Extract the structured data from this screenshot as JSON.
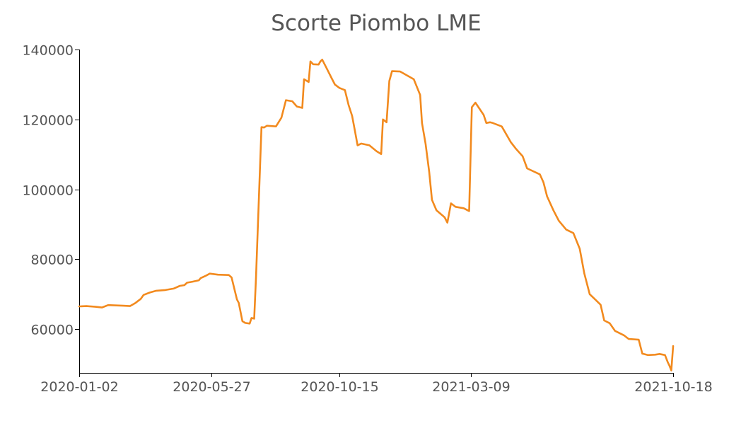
{
  "chart_data": {
    "type": "line",
    "title": "Scorte Piombo LME",
    "xlabel": "",
    "ylabel": "",
    "x_ticks": [
      "2020-01-02",
      "2020-05-27",
      "2020-10-15",
      "2021-03-09",
      "2021-10-18"
    ],
    "y_ticks": [
      "60000",
      "80000",
      "100000",
      "120000",
      "140000"
    ],
    "xlim": [
      "2020-01-02",
      "2021-10-18"
    ],
    "ylim": [
      47500,
      140000
    ],
    "grid": false,
    "legend": "none",
    "line_color": "#f28a1e",
    "series": [
      {
        "points": [
          [
            "2020-01-02",
            66500
          ],
          [
            "2020-01-10",
            66600
          ],
          [
            "2020-01-20",
            66400
          ],
          [
            "2020-01-27",
            66200
          ],
          [
            "2020-02-03",
            66900
          ],
          [
            "2020-02-10",
            66800
          ],
          [
            "2020-02-20",
            66700
          ],
          [
            "2020-02-27",
            66600
          ],
          [
            "2020-03-04",
            67500
          ],
          [
            "2020-03-10",
            68700
          ],
          [
            "2020-03-13",
            69800
          ],
          [
            "2020-03-20",
            70500
          ],
          [
            "2020-03-27",
            71000
          ],
          [
            "2020-04-06",
            71200
          ],
          [
            "2020-04-15",
            71600
          ],
          [
            "2020-04-22",
            72400
          ],
          [
            "2020-04-27",
            72600
          ],
          [
            "2020-04-30",
            73300
          ],
          [
            "2020-05-06",
            73600
          ],
          [
            "2020-05-13",
            74000
          ],
          [
            "2020-05-15",
            74600
          ],
          [
            "2020-05-20",
            75200
          ],
          [
            "2020-05-25",
            75900
          ],
          [
            "2020-05-28",
            75800
          ],
          [
            "2020-06-03",
            75600
          ],
          [
            "2020-06-15",
            75500
          ],
          [
            "2020-06-18",
            74800
          ],
          [
            "2020-06-24",
            68500
          ],
          [
            "2020-06-26",
            67500
          ],
          [
            "2020-06-30",
            62300
          ],
          [
            "2020-07-03",
            61800
          ],
          [
            "2020-07-08",
            61600
          ],
          [
            "2020-07-10",
            63200
          ],
          [
            "2020-07-13",
            63000
          ],
          [
            "2020-07-15",
            75000
          ],
          [
            "2020-07-21",
            117800
          ],
          [
            "2020-07-24",
            117700
          ],
          [
            "2020-07-27",
            118200
          ],
          [
            "2020-08-06",
            118000
          ],
          [
            "2020-08-12",
            120500
          ],
          [
            "2020-08-17",
            125500
          ],
          [
            "2020-08-24",
            125200
          ],
          [
            "2020-08-29",
            123700
          ],
          [
            "2020-09-04",
            123300
          ],
          [
            "2020-09-06",
            131500
          ],
          [
            "2020-09-11",
            130700
          ],
          [
            "2020-09-13",
            136600
          ],
          [
            "2020-09-16",
            135800
          ],
          [
            "2020-09-22",
            135700
          ],
          [
            "2020-09-24",
            136600
          ],
          [
            "2020-09-26",
            137100
          ],
          [
            "2020-09-30",
            135100
          ],
          [
            "2020-10-06",
            132000
          ],
          [
            "2020-10-10",
            130000
          ],
          [
            "2020-10-15",
            129000
          ],
          [
            "2020-10-21",
            128400
          ],
          [
            "2020-10-25",
            124200
          ],
          [
            "2020-10-29",
            121000
          ],
          [
            "2020-11-01",
            116800
          ],
          [
            "2020-11-04",
            112600
          ],
          [
            "2020-11-08",
            113100
          ],
          [
            "2020-11-17",
            112600
          ],
          [
            "2020-11-25",
            110900
          ],
          [
            "2020-11-30",
            110100
          ],
          [
            "2020-12-02",
            120000
          ],
          [
            "2020-12-06",
            119200
          ],
          [
            "2020-12-09",
            131000
          ],
          [
            "2020-12-12",
            133800
          ],
          [
            "2020-12-21",
            133700
          ],
          [
            "2021-01-05",
            131500
          ],
          [
            "2021-01-12",
            127000
          ],
          [
            "2021-01-14",
            119000
          ],
          [
            "2021-01-18",
            113000
          ],
          [
            "2021-01-22",
            105000
          ],
          [
            "2021-01-25",
            97000
          ],
          [
            "2021-01-30",
            94000
          ],
          [
            "2021-02-08",
            92000
          ],
          [
            "2021-02-11",
            90500
          ],
          [
            "2021-02-15",
            96000
          ],
          [
            "2021-02-20",
            95000
          ],
          [
            "2021-03-01",
            94600
          ],
          [
            "2021-03-07",
            93800
          ],
          [
            "2021-03-10",
            123500
          ],
          [
            "2021-03-14",
            124800
          ],
          [
            "2021-03-23",
            121300
          ],
          [
            "2021-03-26",
            119000
          ],
          [
            "2021-03-30",
            119200
          ],
          [
            "2021-04-02",
            119000
          ],
          [
            "2021-04-12",
            118000
          ],
          [
            "2021-04-22",
            113500
          ],
          [
            "2021-04-28",
            111500
          ],
          [
            "2021-05-05",
            109500
          ],
          [
            "2021-05-10",
            106000
          ],
          [
            "2021-05-24",
            104300
          ],
          [
            "2021-05-28",
            102000
          ],
          [
            "2021-06-01",
            98000
          ],
          [
            "2021-06-08",
            94000
          ],
          [
            "2021-06-14",
            91000
          ],
          [
            "2021-06-22",
            88500
          ],
          [
            "2021-06-30",
            87500
          ],
          [
            "2021-07-07",
            83000
          ],
          [
            "2021-07-12",
            76000
          ],
          [
            "2021-07-18",
            70000
          ],
          [
            "2021-07-24",
            68500
          ],
          [
            "2021-07-30",
            67000
          ],
          [
            "2021-08-03",
            62500
          ],
          [
            "2021-08-09",
            61700
          ],
          [
            "2021-08-15",
            59500
          ],
          [
            "2021-08-25",
            58200
          ],
          [
            "2021-08-30",
            57200
          ],
          [
            "2021-09-10",
            57000
          ],
          [
            "2021-09-14",
            53000
          ],
          [
            "2021-09-20",
            52600
          ],
          [
            "2021-09-28",
            52700
          ],
          [
            "2021-10-03",
            52900
          ],
          [
            "2021-10-09",
            52600
          ],
          [
            "2021-10-12",
            50600
          ],
          [
            "2021-10-14",
            49500
          ],
          [
            "2021-10-16",
            48200
          ],
          [
            "2021-10-18",
            55200
          ]
        ]
      }
    ]
  }
}
